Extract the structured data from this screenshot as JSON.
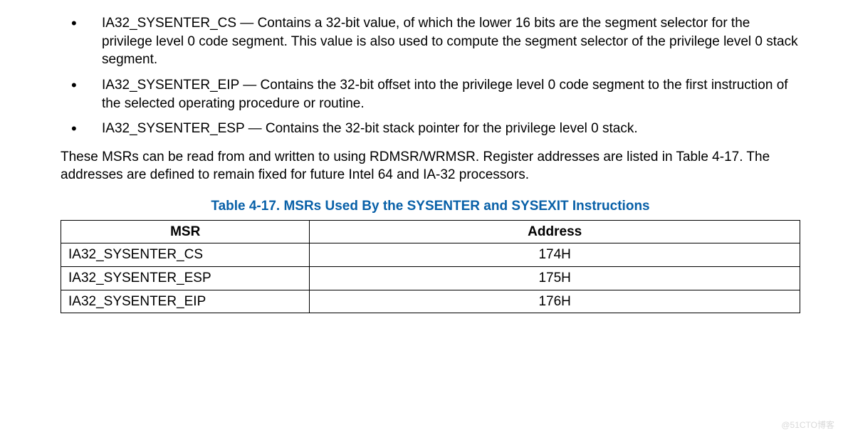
{
  "bullets": [
    "IA32_SYSENTER_CS — Contains a 32-bit value, of which the lower 16 bits are the segment selector for the privilege level 0 code segment. This value is also used to compute the segment selector of the privilege level 0 stack segment.",
    "IA32_SYSENTER_EIP — Contains the 32-bit offset into the privilege level 0 code segment to the first instruction of the selected operating procedure or routine.",
    "IA32_SYSENTER_ESP — Contains the 32-bit stack pointer for the privilege level 0 stack."
  ],
  "paragraph": "These MSRs can be read from and written to using RDMSR/WRMSR. Register addresses are listed in Table 4-17. The addresses are defined to remain fixed for future Intel 64 and IA-32 processors.",
  "table": {
    "title": "Table 4-17.  MSRs Used By the SYSENTER and SYSEXIT Instructions",
    "title_color": "#0860a8",
    "columns": [
      "MSR",
      "Address"
    ],
    "rows": [
      [
        "IA32_SYSENTER_CS",
        "174H"
      ],
      [
        "IA32_SYSENTER_ESP",
        "175H"
      ],
      [
        "IA32_SYSENTER_EIP",
        "176H"
      ]
    ]
  },
  "watermark": "@51CTO博客"
}
